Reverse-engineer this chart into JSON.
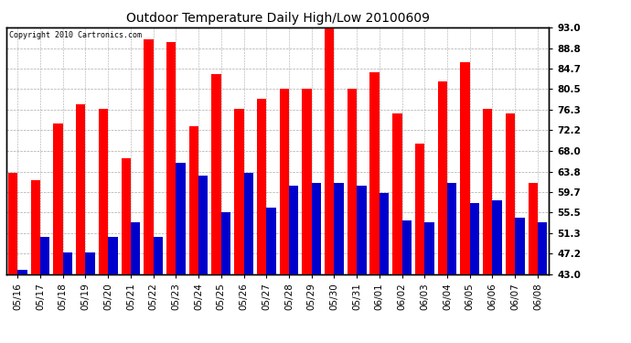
{
  "title": "Outdoor Temperature Daily High/Low 20100609",
  "copyright": "Copyright 2010 Cartronics.com",
  "dates": [
    "05/16",
    "05/17",
    "05/18",
    "05/19",
    "05/20",
    "05/21",
    "05/22",
    "05/23",
    "05/24",
    "05/25",
    "05/26",
    "05/27",
    "05/28",
    "05/29",
    "05/30",
    "05/31",
    "06/01",
    "06/02",
    "06/03",
    "06/04",
    "06/05",
    "06/06",
    "06/07",
    "06/08"
  ],
  "highs": [
    63.5,
    62.0,
    73.5,
    77.5,
    76.5,
    66.5,
    90.5,
    90.0,
    73.0,
    83.5,
    76.5,
    78.5,
    80.5,
    80.5,
    93.5,
    80.5,
    84.0,
    75.5,
    69.5,
    82.0,
    86.0,
    76.5,
    75.5,
    61.5
  ],
  "lows": [
    44.0,
    50.5,
    47.5,
    47.5,
    50.5,
    53.5,
    50.5,
    65.5,
    63.0,
    55.5,
    63.5,
    56.5,
    61.0,
    61.5,
    61.5,
    61.0,
    59.5,
    54.0,
    53.5,
    61.5,
    57.5,
    58.0,
    54.5,
    53.5
  ],
  "high_color": "#ff0000",
  "low_color": "#0000cc",
  "bg_color": "#ffffff",
  "ylim_min": 43.0,
  "ylim_max": 93.0,
  "yticks": [
    43.0,
    47.2,
    51.3,
    55.5,
    59.7,
    63.8,
    68.0,
    72.2,
    76.3,
    80.5,
    84.7,
    88.8,
    93.0
  ],
  "grid_color": "#aaaaaa",
  "bar_width": 0.42
}
